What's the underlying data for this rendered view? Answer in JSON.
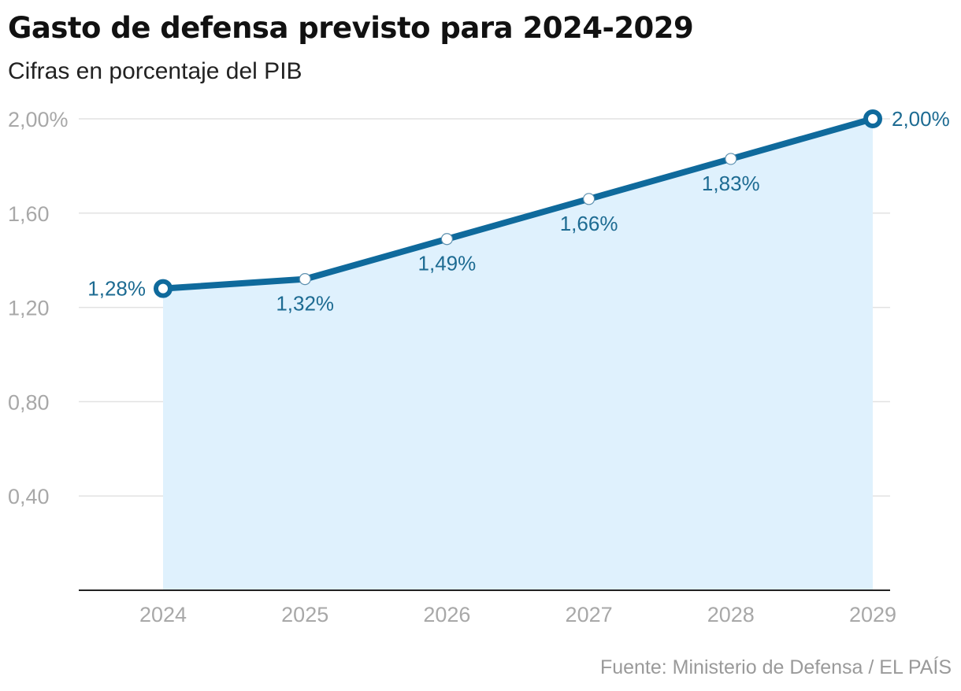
{
  "chart_data": {
    "type": "area",
    "title": "Gasto de defensa previsto para 2024-2029",
    "subtitle": "Cifras en porcentaje del PIB",
    "source": "Fuente: Ministerio de Defensa / EL PAÍS",
    "x": [
      "2024",
      "2025",
      "2026",
      "2027",
      "2028",
      "2029"
    ],
    "values": [
      1.28,
      1.32,
      1.49,
      1.66,
      1.83,
      2.0
    ],
    "data_labels": [
      "1,28%",
      "1,32%",
      "1,49%",
      "1,66%",
      "1,83%",
      "2,00%"
    ],
    "yticks": [
      {
        "value": 0.4,
        "label": "0,40"
      },
      {
        "value": 0.8,
        "label": "0,80"
      },
      {
        "value": 1.2,
        "label": "1,20"
      },
      {
        "value": 1.6,
        "label": "1,60"
      },
      {
        "value": 2.0,
        "label": "2,00%"
      }
    ],
    "ylim": [
      0,
      2.0
    ],
    "grid": true,
    "colors": {
      "line": "#0f6a9c",
      "fill": "#dff1fd",
      "label": "#1d6b92",
      "grid": "#e2e2e2",
      "axis": "#222222",
      "tick_text": "#a8a8a8"
    }
  }
}
